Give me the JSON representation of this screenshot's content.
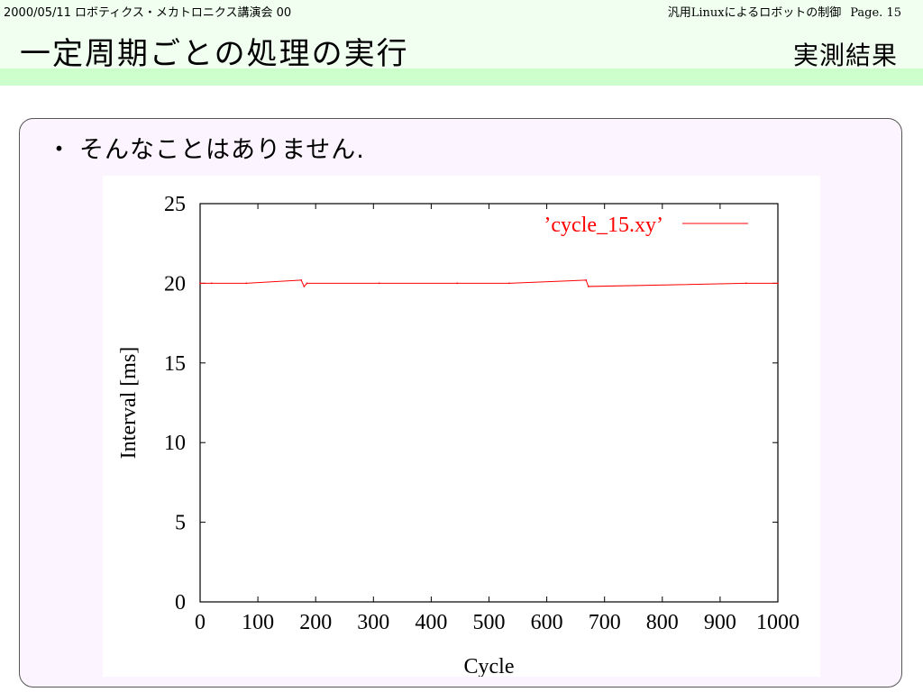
{
  "header": {
    "date_event": "2000/05/11 ロボティクス・メカトロニクス講演会 00",
    "talk_title": "汎用Linuxによるロボットの制御",
    "page_label": "Page. 15",
    "slide_title": "一定周期ごとの処理の実行",
    "slide_subtitle": "実測結果"
  },
  "content": {
    "bullet_mark": "・",
    "bullet_text": "そんなことはありません."
  },
  "colors": {
    "header_band": "#f0fff0",
    "header_stripe": "#ccffcc",
    "content_bg": "#fcf4ff",
    "series_line": "#ff0000"
  },
  "chart_data": {
    "type": "line",
    "title": "",
    "xlabel": "Cycle",
    "ylabel": "Interval [ms]",
    "xlim": [
      0,
      1000
    ],
    "ylim": [
      0,
      25
    ],
    "x_ticks": [
      0,
      100,
      200,
      300,
      400,
      500,
      600,
      700,
      800,
      900,
      1000
    ],
    "y_ticks": [
      0,
      5,
      10,
      15,
      20,
      25
    ],
    "legend_position": "top-right",
    "grid": false,
    "series": [
      {
        "name": "’cycle_15.xy’",
        "color": "#ff0000",
        "x": [
          0,
          20,
          80,
          175,
          180,
          185,
          310,
          445,
          535,
          668,
          672,
          945,
          1000
        ],
        "y": [
          20,
          20,
          20,
          20.2,
          19.8,
          20,
          20,
          20,
          20,
          20.2,
          19.8,
          20,
          20
        ]
      }
    ]
  }
}
